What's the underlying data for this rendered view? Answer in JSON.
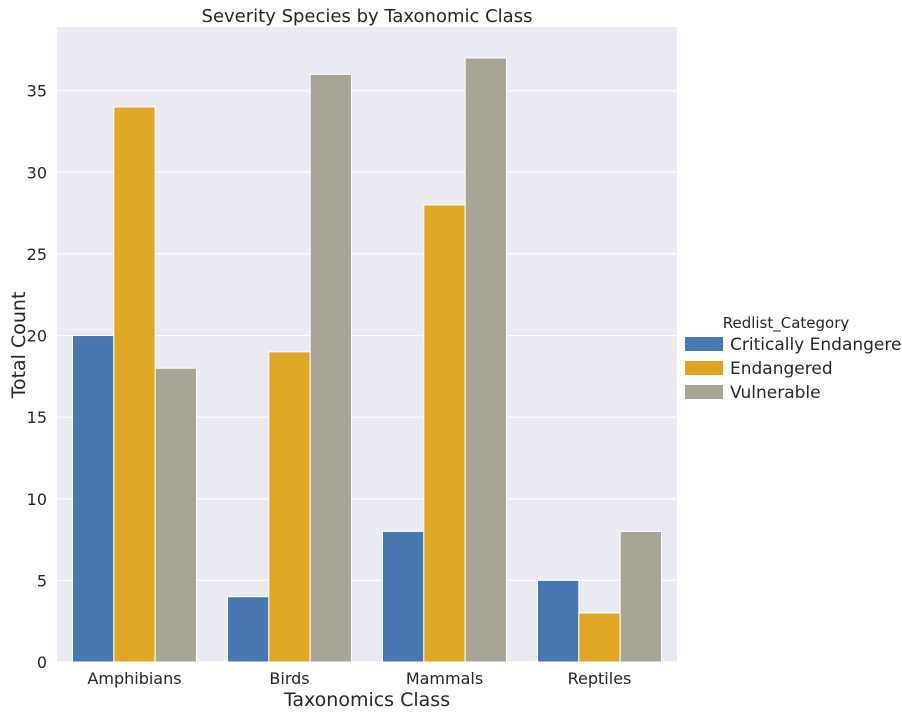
{
  "chart_data": {
    "type": "bar",
    "title": "Severity Species by Taxonomic Class",
    "xlabel": "Taxonomics Class",
    "ylabel": "Total Count",
    "categories": [
      "Amphibians",
      "Birds",
      "Mammals",
      "Reptiles"
    ],
    "series": [
      {
        "name": "Critically Endangered",
        "color": "#4878b2",
        "values": [
          20,
          4,
          8,
          5
        ]
      },
      {
        "name": "Endangered",
        "color": "#e0a625",
        "values": [
          34,
          19,
          28,
          3
        ]
      },
      {
        "name": "Vulnerable",
        "color": "#a8a597",
        "values": [
          18,
          36,
          37,
          8
        ]
      }
    ],
    "ylim": [
      0,
      38.9
    ],
    "yticks": [
      0,
      5,
      10,
      15,
      20,
      25,
      30,
      35
    ],
    "legend_title": "Redlist_Category",
    "legend_position": "right",
    "grid": true,
    "background": "#eaeaf2"
  }
}
